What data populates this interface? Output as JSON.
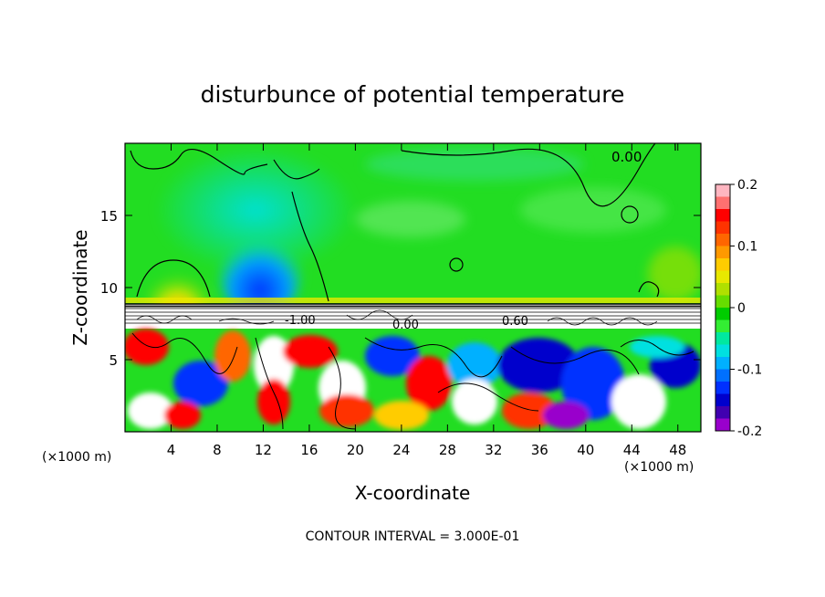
{
  "chart_data": {
    "type": "heatmap",
    "title": "disturbunce of potential temperature",
    "xlabel": "X-coordinate",
    "ylabel": "Z-coordinate",
    "x_unit_left": "(×1000 m)",
    "x_unit_right": "(×1000 m)",
    "xlim": [
      0,
      50
    ],
    "ylim": [
      0,
      20
    ],
    "x_ticks": [
      "4",
      "8",
      "12",
      "16",
      "20",
      "24",
      "28",
      "32",
      "36",
      "40",
      "44",
      "48"
    ],
    "y_ticks": [
      "5",
      "10",
      "15"
    ],
    "colorbar": {
      "range": [
        -0.2,
        0.2
      ],
      "labels": [
        "0.2",
        "0.1",
        "0",
        "-0.1",
        "-0.2"
      ],
      "colors": [
        "#ffb6c1",
        "#ff7070",
        "#ff0000",
        "#ff3300",
        "#ff6600",
        "#ff9900",
        "#ffcc00",
        "#e8e800",
        "#b0e000",
        "#66dd00",
        "#00cc00",
        "#33ee33",
        "#00e8a0",
        "#00e0e0",
        "#00b0ff",
        "#0070ff",
        "#0030ff",
        "#0000cc",
        "#4000b0",
        "#9900cc"
      ]
    },
    "contour_labels": [
      "0.00",
      "-1.00",
      "0.60",
      "0.00"
    ],
    "contour_interval_text": "CONTOUR INTERVAL = 3.000E-01",
    "regions": [
      {
        "name": "upper",
        "z_range": [
          8.8,
          20
        ],
        "dominant_value": 0.02
      },
      {
        "name": "lower",
        "z_range": [
          0,
          8.8
        ],
        "value_range": [
          -0.2,
          0.2
        ]
      }
    ]
  }
}
